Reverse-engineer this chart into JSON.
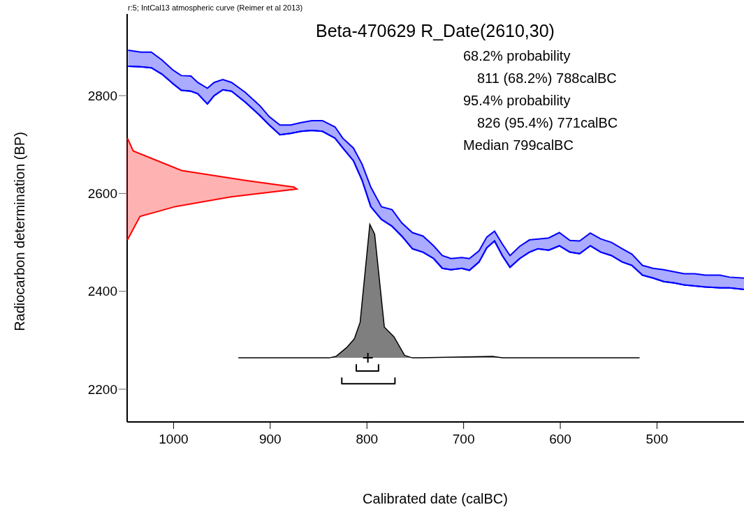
{
  "chart_data": {
    "type": "area",
    "title": "Beta-470629 R_Date(2610,30)",
    "xlabel": "Calibrated date (calBC)",
    "ylabel": "Radiocarbon determination (BP)",
    "annotations": [
      "r:5; IntCal13 atmospheric curve (Reimer et al 2013)",
      "68.2% probability",
      "811 (68.2%) 788calBC",
      "95.4% probability",
      "826 (95.4%) 771calBC",
      "Median 799calBC"
    ],
    "xlim": [
      1048,
      410
    ],
    "xticks": [
      1000,
      900,
      800,
      700,
      600,
      500
    ],
    "ylim": [
      2133,
      2967
    ],
    "yticks": [
      2200,
      2400,
      2600,
      2800
    ],
    "series": [
      {
        "type": "line",
        "color": "#0000ff",
        "x": [
          1047,
          1034,
          1023,
          1012,
          1001,
          992,
          982,
          975,
          965,
          958,
          949,
          940,
          926,
          911,
          901,
          890,
          879,
          868,
          857,
          846,
          833,
          825,
          814,
          805,
          796,
          785,
          774,
          764,
          753,
          742,
          731,
          722,
          713,
          702,
          694,
          684,
          676,
          668,
          660,
          652,
          642,
          632,
          623,
          612,
          601,
          590,
          580,
          569,
          558,
          547,
          536,
          526,
          515,
          504,
          493,
          482,
          472,
          461,
          450,
          435,
          425,
          410
        ],
        "values": [
          2860,
          2859,
          2857,
          2844,
          2825,
          2811,
          2809,
          2804,
          2783,
          2800,
          2812,
          2809,
          2787,
          2760,
          2740,
          2720,
          2723,
          2727,
          2729,
          2727,
          2713,
          2693,
          2667,
          2627,
          2573,
          2547,
          2533,
          2513,
          2487,
          2480,
          2467,
          2447,
          2444,
          2447,
          2443,
          2460,
          2489,
          2503,
          2473,
          2449,
          2467,
          2480,
          2487,
          2484,
          2493,
          2480,
          2477,
          2493,
          2480,
          2473,
          2460,
          2453,
          2433,
          2427,
          2420,
          2417,
          2413,
          2411,
          2409,
          2407,
          2407,
          2404
        ]
      },
      {
        "color": "#0000ff",
        "x": [
          1047,
          1034,
          1023,
          1012,
          1001,
          992,
          982,
          975,
          965,
          958,
          949,
          940,
          926,
          911,
          901,
          890,
          879,
          868,
          857,
          846,
          833,
          825,
          814,
          805,
          796,
          785,
          774,
          764,
          753,
          742,
          731,
          722,
          713,
          702,
          694,
          684,
          676,
          668,
          660,
          652,
          642,
          632,
          623,
          612,
          601,
          590,
          580,
          569,
          558,
          547,
          536,
          526,
          515,
          504,
          493,
          482,
          472,
          461,
          450,
          435,
          425,
          410
        ],
        "values": [
          2893,
          2889,
          2889,
          2873,
          2853,
          2841,
          2840,
          2827,
          2815,
          2827,
          2833,
          2827,
          2807,
          2780,
          2757,
          2740,
          2740,
          2745,
          2749,
          2749,
          2736,
          2713,
          2693,
          2660,
          2613,
          2573,
          2567,
          2540,
          2520,
          2513,
          2493,
          2473,
          2467,
          2469,
          2467,
          2483,
          2511,
          2523,
          2497,
          2473,
          2492,
          2505,
          2507,
          2509,
          2520,
          2504,
          2503,
          2519,
          2507,
          2500,
          2487,
          2476,
          2453,
          2447,
          2444,
          2440,
          2436,
          2436,
          2433,
          2433,
          2429,
          2427
        ]
      },
      {
        "color": "#ff0000",
        "x": [
          1047,
          1041,
          991,
          926,
          875,
          872,
          940,
          998,
          1034,
          1047
        ],
        "values": [
          2713,
          2687,
          2647,
          2627,
          2613,
          2609,
          2593,
          2573,
          2553,
          2505
        ]
      },
      {
        "color": "#000000",
        "x": [
          933,
          839,
          832,
          821,
          813,
          807,
          797,
          792,
          782,
          772,
          761,
          753,
          745,
          670,
          660,
          518
        ],
        "values": [
          2264,
          2264,
          2267,
          2285,
          2303,
          2337,
          2537,
          2517,
          2327,
          2307,
          2269,
          2264,
          2264,
          2267,
          2264,
          2264
        ]
      },
      {
        "type": "line",
        "color": "#000000",
        "x": [
          811,
          811,
          788,
          788
        ],
        "values": [
          2251,
          2237,
          2237,
          2251
        ]
      },
      {
        "type": "line",
        "color": "#000000",
        "x": [
          826,
          826,
          771,
          771
        ],
        "values": [
          2224,
          2211,
          2211,
          2224
        ]
      },
      {
        "type": "scatter",
        "marker": "cross",
        "color": "#000000",
        "x": [
          799
        ],
        "values": [
          2264
        ]
      }
    ]
  }
}
